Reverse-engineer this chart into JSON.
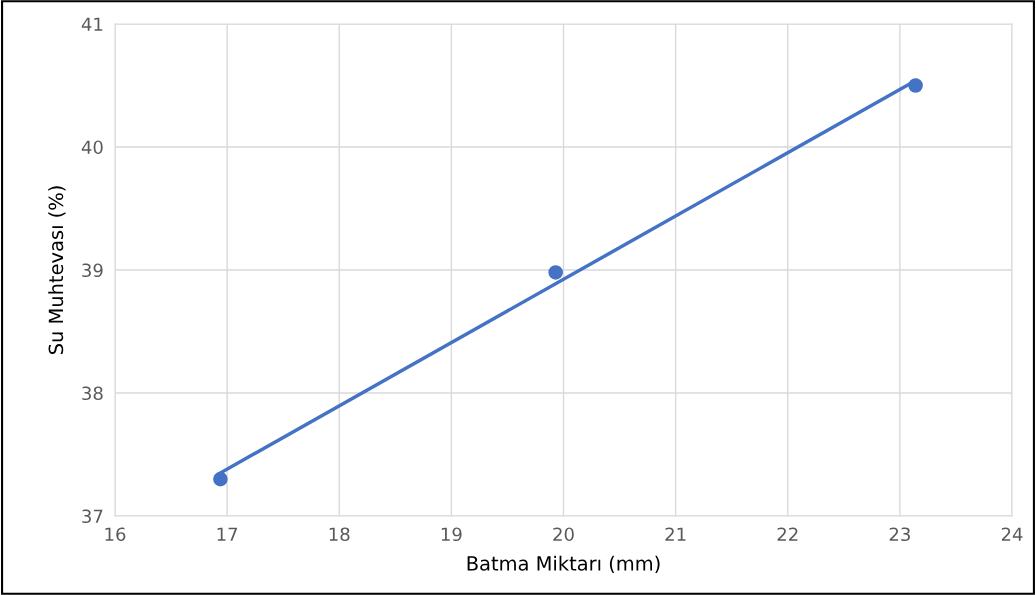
{
  "chart_data": {
    "type": "scatter",
    "xlabel": "Batma Miktarı (mm)",
    "ylabel": "Su Muhtevası (%)",
    "xlim": [
      16,
      24
    ],
    "xticks": [
      16,
      17,
      18,
      19,
      20,
      21,
      22,
      23,
      24
    ],
    "ylim": [
      37,
      41
    ],
    "yticks": [
      37,
      38,
      39,
      40,
      41
    ],
    "grid": true,
    "series": [
      {
        "marker": "circle",
        "color": "#4472c4",
        "x": [
          16.94,
          19.93,
          23.14
        ],
        "values": [
          37.3,
          38.98,
          40.5
        ]
      },
      {
        "type": "line",
        "color": "#4472c4",
        "x": [
          16.94,
          23.14
        ],
        "values": [
          37.35,
          40.54
        ],
        "line_style": "solid",
        "marker": "none"
      }
    ]
  }
}
